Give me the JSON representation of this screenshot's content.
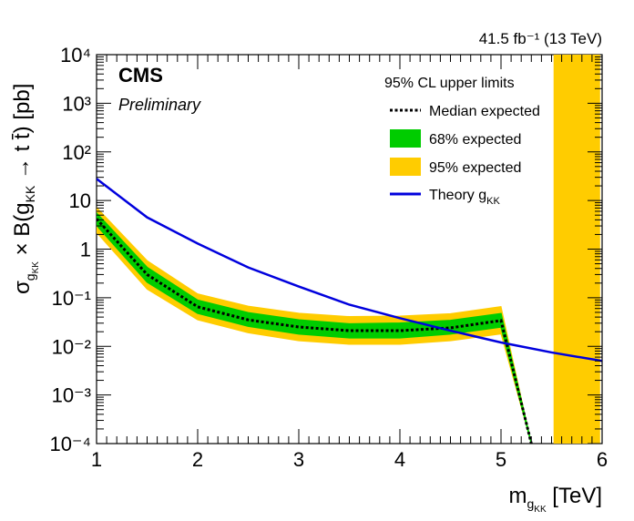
{
  "chart_data": {
    "type": "line",
    "lumi_label": "41.5 fb⁻¹ (13 TeV)",
    "experiment": "CMS",
    "status": "Preliminary",
    "xlabel": "m_gKK [TeV]",
    "ylabel": "σ_gKK × B(gKK → t t̄) [pb]",
    "xlim": [
      1,
      6
    ],
    "ylim": [
      0.0001,
      10000
    ],
    "yscale": "log",
    "x_ticks": [
      "1",
      "2",
      "3",
      "4",
      "5",
      "6"
    ],
    "y_ticks": [
      "10⁻⁴",
      "10⁻³",
      "10⁻²",
      "10⁻¹",
      "1",
      "10",
      "10²",
      "10³",
      "10⁴"
    ],
    "legend_header": "95% CL upper limits",
    "legend_position": "top-right",
    "grid": false,
    "colors": {
      "band68": "#00cc00",
      "band95": "#ffcc00",
      "theory": "#0000dd",
      "median": "#000000"
    },
    "series": [
      {
        "name": "Median expected",
        "x": [
          1.0,
          1.5,
          2.0,
          2.5,
          3.0,
          3.5,
          4.0,
          4.5,
          5.0,
          5.3
        ],
        "y": [
          4.2,
          0.3,
          0.065,
          0.035,
          0.025,
          0.021,
          0.021,
          0.024,
          0.034,
          0.0001
        ]
      },
      {
        "name": "68% expected",
        "x": [
          1.0,
          1.5,
          2.0,
          2.5,
          3.0,
          3.5,
          4.0,
          4.5,
          5.0,
          5.3
        ],
        "y_low": [
          3.1,
          0.21,
          0.048,
          0.026,
          0.018,
          0.015,
          0.015,
          0.018,
          0.025,
          0.0001
        ],
        "y_high": [
          5.5,
          0.42,
          0.089,
          0.049,
          0.035,
          0.029,
          0.03,
          0.034,
          0.047,
          0.0001
        ]
      },
      {
        "name": "95% expected",
        "x": [
          1.0,
          1.5,
          2.0,
          2.5,
          3.0,
          3.5,
          4.0,
          4.5,
          5.0,
          5.3
        ],
        "y_low": [
          2.2,
          0.15,
          0.035,
          0.019,
          0.013,
          0.011,
          0.011,
          0.013,
          0.018,
          0.0001
        ],
        "y_high": [
          7.2,
          0.58,
          0.12,
          0.067,
          0.048,
          0.041,
          0.042,
          0.047,
          0.066,
          0.0001
        ]
      },
      {
        "name": "Theory gKK",
        "x": [
          1.0,
          1.5,
          2.0,
          2.5,
          3.0,
          3.5,
          4.0,
          4.5,
          5.0,
          5.5,
          6.0
        ],
        "y": [
          28,
          4.5,
          1.3,
          0.42,
          0.17,
          0.072,
          0.038,
          0.021,
          0.012,
          0.0075,
          0.005
        ]
      }
    ],
    "excluded_band": {
      "x": [
        5.52,
        5.98
      ],
      "color": "#ffcc00"
    }
  }
}
